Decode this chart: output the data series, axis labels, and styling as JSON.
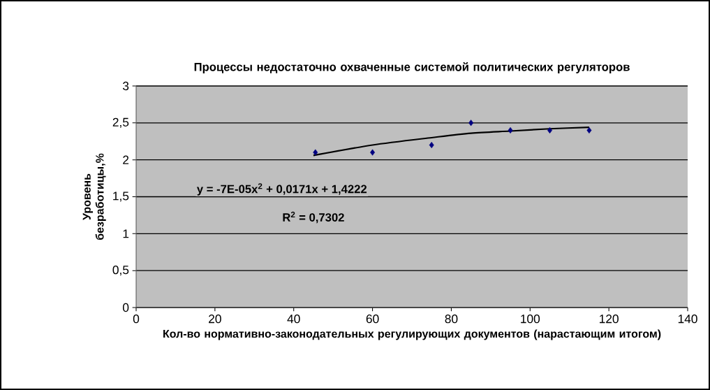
{
  "chart_data": {
    "type": "scatter",
    "title": "Процессы недостаточно охваченные системой политических регуляторов",
    "xlabel": "Кол-во нормативно-законодательных регулирующих документов (нарастающим итогом)",
    "ylabel": "Уровень безработицы,%",
    "series": [
      {
        "color": "#000080",
        "marker": "diamond",
        "x": [
          45.5,
          60,
          75,
          85,
          95,
          105,
          115
        ],
        "values": [
          2.1,
          2.1,
          2.2,
          2.5,
          2.4,
          2.4,
          2.4
        ]
      },
      {
        "type": "line",
        "color": "#000000",
        "marker": "none",
        "x": [
          45,
          60,
          75,
          85,
          95,
          105,
          115
        ],
        "values": [
          2.06,
          2.2,
          2.3,
          2.36,
          2.39,
          2.42,
          2.44
        ]
      }
    ],
    "annotations": [
      "y = -7E-05x$^{2}$ + 0,0171x + 1,4222",
      "R$^{2}$ = 0,7302"
    ],
    "xlim": [
      0,
      140
    ],
    "xticks": [
      0,
      20,
      40,
      60,
      80,
      100,
      120,
      140
    ],
    "ylim": [
      0,
      3
    ],
    "yticks": [
      0,
      {
        "value": 0.5,
        "label": "0,5"
      },
      1,
      {
        "value": 1.5,
        "label": "1,5"
      },
      2,
      {
        "value": 2.5,
        "label": "2,5"
      },
      3
    ],
    "grid": "y"
  }
}
